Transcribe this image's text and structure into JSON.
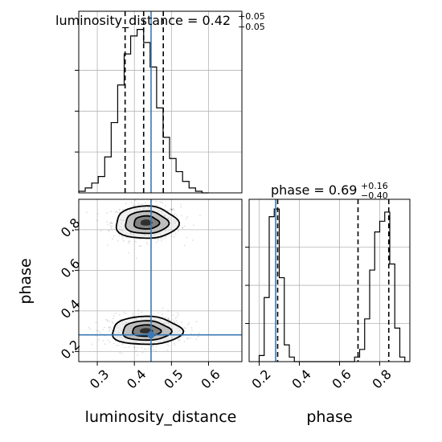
{
  "chart_data": {
    "type": "corner",
    "parameters": [
      "luminosity_distance",
      "phase"
    ],
    "truths": {
      "luminosity_distance": 0.445,
      "phase": 0.282
    },
    "truth_color": "#3b78b4",
    "grid": true,
    "panels": [
      {
        "id": "hist-luminosity-distance",
        "type": "histogram",
        "parameter": "luminosity_distance",
        "title": {
          "prefix": "luminosity_distance = ",
          "value": "0.42",
          "plus": "+0.05",
          "minus": "−0.05"
        },
        "xlim": [
          0.25,
          0.69
        ],
        "xticks": [
          0.3,
          0.4,
          0.5,
          0.6
        ],
        "quantile_lines": [
          0.375,
          0.425,
          0.478
        ],
        "bin_edges": [
          0.25,
          0.2675,
          0.285,
          0.3025,
          0.32,
          0.3375,
          0.355,
          0.3725,
          0.39,
          0.4075,
          0.425,
          0.4425,
          0.46,
          0.4775,
          0.495,
          0.5125,
          0.53,
          0.5475,
          0.565,
          0.5825,
          0.6
        ],
        "counts": [
          1,
          3,
          6,
          10,
          22,
          43,
          66,
          85,
          96,
          100,
          92,
          77,
          52,
          34,
          21,
          13,
          7,
          3,
          1,
          0
        ]
      },
      {
        "id": "hist-phase",
        "type": "histogram",
        "parameter": "phase",
        "title": {
          "prefix": "phase = ",
          "value": "0.69",
          "plus": "+0.16",
          "minus": "−0.40"
        },
        "xlim": [
          0.15,
          0.95
        ],
        "xticks": [
          0.2,
          0.4,
          0.6,
          0.8
        ],
        "quantile_lines": [
          0.292,
          0.692,
          0.845
        ],
        "bin_edges": [
          0.2,
          0.225,
          0.25,
          0.275,
          0.3,
          0.325,
          0.35,
          0.375,
          0.4,
          0.425,
          0.45,
          0.475,
          0.5,
          0.525,
          0.55,
          0.575,
          0.6,
          0.625,
          0.65,
          0.675,
          0.7,
          0.725,
          0.75,
          0.775,
          0.8,
          0.825,
          0.85,
          0.875,
          0.9,
          0.925,
          0.95
        ],
        "counts": [
          4,
          42,
          95,
          100,
          55,
          11,
          3,
          0,
          0,
          0,
          0,
          0,
          0,
          0,
          0,
          0,
          0,
          0,
          0,
          3,
          8,
          28,
          60,
          85,
          92,
          98,
          64,
          22,
          3,
          0
        ]
      },
      {
        "id": "joint-phase-luminosity-distance",
        "type": "2d-density",
        "x_param": "luminosity_distance",
        "y_param": "phase",
        "xlim": [
          0.25,
          0.69
        ],
        "ylim": [
          0.15,
          0.95
        ],
        "xticks": [
          0.3,
          0.4,
          0.5,
          0.6
        ],
        "yticks": [
          0.2,
          0.4,
          0.6,
          0.8
        ],
        "modes": [
          {
            "center": [
              0.432,
              0.835
            ],
            "sigma": [
              0.04,
              0.038
            ]
          },
          {
            "center": [
              0.432,
              0.302
            ],
            "sigma": [
              0.045,
              0.033
            ]
          }
        ]
      }
    ],
    "xlabels": [
      "luminosity_distance",
      "phase"
    ],
    "ylabel": "phase"
  }
}
